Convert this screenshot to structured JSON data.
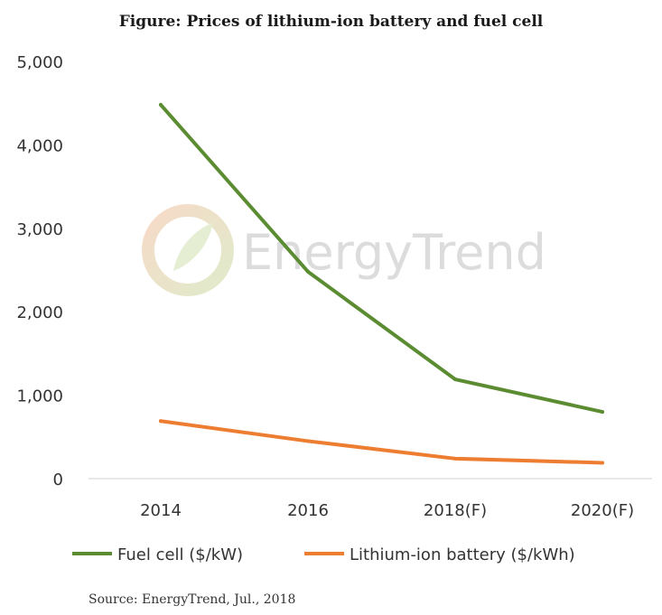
{
  "chart_data": {
    "type": "line",
    "title": "Figure: Prices of lithium-ion battery and fuel cell",
    "categories": [
      "2014",
      "2016",
      "2018(F)",
      "2020(F)"
    ],
    "series": [
      {
        "name": "Fuel cell ($/kW)",
        "color": "#5b8c32",
        "values": [
          4480,
          2480,
          1190,
          800
        ]
      },
      {
        "name": "Lithium-ion battery ($/kWh)",
        "color": "#ed7d31",
        "values": [
          690,
          450,
          240,
          190
        ]
      }
    ],
    "yticks": [
      "0",
      "1,000",
      "2,000",
      "3,000",
      "4,000",
      "5,000"
    ],
    "ylim": [
      0,
      5000
    ],
    "xlabel": "",
    "ylabel": "",
    "legend_position": "bottom",
    "grid": false
  },
  "watermark": {
    "text": "EnergyTrend"
  },
  "source": "Source: EnergyTrend, Jul., 2018"
}
